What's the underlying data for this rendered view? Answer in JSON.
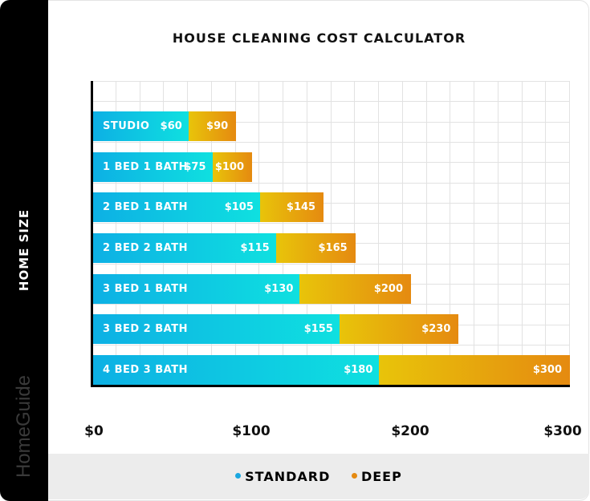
{
  "chart_data": {
    "type": "bar",
    "orientation": "horizontal",
    "stacked": "overlay",
    "title": "HOUSE CLEANING COST CALCULATOR",
    "xlabel": "",
    "ylabel": "HOME SIZE",
    "xlim": [
      0,
      300
    ],
    "x_ticks": [
      "$0",
      "$100",
      "$200",
      "$300"
    ],
    "grid": true,
    "legend_position": "bottom",
    "categories": [
      "STUDIO",
      "1 BED 1 BATH",
      "2 BED 1 BATH",
      "2 BED 2 BATH",
      "3 BED 1 BATH",
      "3 BED 2 BATH",
      "4 BED 3 BATH"
    ],
    "series": [
      {
        "name": "STANDARD",
        "color": "#0db0e4",
        "values": [
          60,
          75,
          105,
          115,
          130,
          155,
          180
        ]
      },
      {
        "name": "DEEP",
        "color": "#e58a10",
        "values": [
          90,
          100,
          145,
          165,
          200,
          230,
          300
        ]
      }
    ]
  },
  "title": "HOUSE CLEANING COST CALCULATOR",
  "axis_title": "HOME SIZE",
  "brand": "HomeGuide",
  "ticks": [
    {
      "label": "$0",
      "value": 0
    },
    {
      "label": "$100",
      "value": 100
    },
    {
      "label": "$200",
      "value": 200
    },
    {
      "label": "$300",
      "value": 300
    }
  ],
  "bars": [
    {
      "label": "STUDIO",
      "standard": 60,
      "deep": 90,
      "standard_label": "$60",
      "deep_label": "$90"
    },
    {
      "label": "1 BED 1 BATH",
      "standard": 75,
      "deep": 100,
      "standard_label": "$75",
      "deep_label": "$100"
    },
    {
      "label": "2 BED 1 BATH",
      "standard": 105,
      "deep": 145,
      "standard_label": "$105",
      "deep_label": "$145"
    },
    {
      "label": "2 BED 2 BATH",
      "standard": 115,
      "deep": 165,
      "standard_label": "$115",
      "deep_label": "$165"
    },
    {
      "label": "3 BED 1 BATH",
      "standard": 130,
      "deep": 200,
      "standard_label": "$130",
      "deep_label": "$200"
    },
    {
      "label": "3 BED 2 BATH",
      "standard": 155,
      "deep": 230,
      "standard_label": "$155",
      "deep_label": "$230"
    },
    {
      "label": "4 BED 3 BATH",
      "standard": 180,
      "deep": 300,
      "standard_label": "$180",
      "deep_label": "$300"
    }
  ],
  "legend": [
    {
      "label": "STANDARD",
      "color": "#1aa7e0"
    },
    {
      "label": "DEEP",
      "color": "#e58a10"
    }
  ]
}
